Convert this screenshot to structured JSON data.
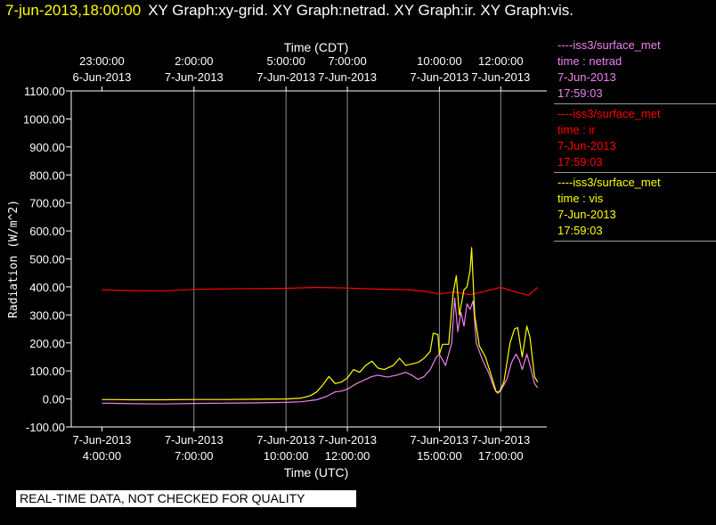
{
  "header": {
    "timestamp": "7-jun-2013,18:00:00",
    "titles": "XY Graph:xy-grid.  XY Graph:netrad.  XY Graph:ir.  XY Graph:vis."
  },
  "legend": [
    {
      "source": "----iss3/surface_met",
      "var": "time : netrad",
      "date": "7-Jun-2013",
      "time": "17:59:03",
      "color": "#ee82ee"
    },
    {
      "source": "----iss3/surface_met",
      "var": "time : ir",
      "date": "7-Jun-2013",
      "time": "17:59:03",
      "color": "#ff0000"
    },
    {
      "source": "----iss3/surface_met",
      "var": "time : vis",
      "date": "7-Jun-2013",
      "time": "17:59:03",
      "color": "#ffff00"
    }
  ],
  "qc_banner": "REAL-TIME DATA, NOT CHECKED FOR QUALITY",
  "chart_data": {
    "type": "line",
    "xlabel": "Time (UTC)",
    "x2label": "Time (CDT)",
    "ylabel": "Radiation (W/m^2)",
    "xlim": [
      3.0,
      18.5
    ],
    "ylim": [
      -100,
      1100
    ],
    "yticks": [
      -100,
      0,
      100,
      200,
      300,
      400,
      500,
      600,
      700,
      800,
      900,
      1000,
      1100
    ],
    "ytick_labels": [
      "-100.00",
      "0.00",
      "100.00",
      "200.00",
      "300.00",
      "400.00",
      "500.00",
      "600.00",
      "700.00",
      "800.00",
      "900.00",
      "1000.00",
      "1100.00"
    ],
    "xticks_utc": [
      {
        "x": 4.0,
        "date": "7-Jun-2013",
        "time": "4:00:00"
      },
      {
        "x": 7.0,
        "date": "7-Jun-2013",
        "time": "7:00:00"
      },
      {
        "x": 10.0,
        "date": "7-Jun-2013",
        "time": "10:00:00"
      },
      {
        "x": 12.0,
        "date": "7-Jun-2013",
        "time": "12:00:00"
      },
      {
        "x": 15.0,
        "date": "7-Jun-2013",
        "time": "15:00:00"
      },
      {
        "x": 17.0,
        "date": "7-Jun-2013",
        "time": "17:00:00"
      }
    ],
    "xticks_cdt": [
      {
        "x": 4.0,
        "time": "23:00:00",
        "date": "6-Jun-2013"
      },
      {
        "x": 7.0,
        "time": "2:00:00",
        "date": "7-Jun-2013"
      },
      {
        "x": 10.0,
        "time": "5:00:00",
        "date": "7-Jun-2013"
      },
      {
        "x": 12.0,
        "time": "7:00:00",
        "date": "7-Jun-2013"
      },
      {
        "x": 15.0,
        "time": "10:00:00",
        "date": "7-Jun-2013"
      },
      {
        "x": 17.0,
        "time": "12:00:00",
        "date": "7-Jun-2013"
      }
    ],
    "vgrid": [
      7.0,
      10.0,
      12.0,
      15.0,
      17.0
    ],
    "grid": true,
    "series": [
      {
        "name": "netrad",
        "color": "#ee82ee",
        "points": [
          [
            4.0,
            -15
          ],
          [
            5.0,
            -17
          ],
          [
            6.0,
            -18
          ],
          [
            7.0,
            -16
          ],
          [
            8.0,
            -15
          ],
          [
            9.0,
            -14
          ],
          [
            10.0,
            -12
          ],
          [
            10.5,
            -10
          ],
          [
            11.0,
            -3
          ],
          [
            11.3,
            8
          ],
          [
            11.6,
            25
          ],
          [
            11.8,
            28
          ],
          [
            12.0,
            35
          ],
          [
            12.3,
            55
          ],
          [
            12.5,
            65
          ],
          [
            12.8,
            80
          ],
          [
            13.0,
            85
          ],
          [
            13.3,
            78
          ],
          [
            13.6,
            85
          ],
          [
            13.9,
            95
          ],
          [
            14.1,
            85
          ],
          [
            14.3,
            70
          ],
          [
            14.5,
            80
          ],
          [
            14.7,
            105
          ],
          [
            14.9,
            150
          ],
          [
            15.0,
            160
          ],
          [
            15.2,
            120
          ],
          [
            15.4,
            200
          ],
          [
            15.5,
            360
          ],
          [
            15.6,
            240
          ],
          [
            15.7,
            310
          ],
          [
            15.8,
            260
          ],
          [
            15.9,
            340
          ],
          [
            16.0,
            320
          ],
          [
            16.1,
            350
          ],
          [
            16.2,
            200
          ],
          [
            16.4,
            140
          ],
          [
            16.6,
            95
          ],
          [
            16.8,
            35
          ],
          [
            16.9,
            20
          ],
          [
            17.0,
            30
          ],
          [
            17.2,
            70
          ],
          [
            17.35,
            130
          ],
          [
            17.5,
            160
          ],
          [
            17.6,
            140
          ],
          [
            17.7,
            105
          ],
          [
            17.85,
            160
          ],
          [
            17.95,
            120
          ],
          [
            18.1,
            55
          ],
          [
            18.2,
            40
          ]
        ]
      },
      {
        "name": "ir",
        "color": "#ff0000",
        "points": [
          [
            4.0,
            390
          ],
          [
            5.0,
            387
          ],
          [
            6.0,
            386
          ],
          [
            7.0,
            391
          ],
          [
            8.0,
            393
          ],
          [
            9.0,
            394
          ],
          [
            10.0,
            395
          ],
          [
            11.0,
            398
          ],
          [
            12.0,
            396
          ],
          [
            13.0,
            392
          ],
          [
            14.0,
            390
          ],
          [
            14.5,
            385
          ],
          [
            15.0,
            375
          ],
          [
            15.5,
            382
          ],
          [
            16.0,
            372
          ],
          [
            16.5,
            385
          ],
          [
            17.0,
            398
          ],
          [
            17.5,
            382
          ],
          [
            17.9,
            370
          ],
          [
            18.2,
            398
          ]
        ]
      },
      {
        "name": "vis",
        "color": "#ffff00",
        "points": [
          [
            4.0,
            -2
          ],
          [
            5.0,
            -3
          ],
          [
            6.0,
            -3
          ],
          [
            7.0,
            -2
          ],
          [
            8.0,
            -2
          ],
          [
            9.0,
            -1
          ],
          [
            10.0,
            0
          ],
          [
            10.5,
            3
          ],
          [
            10.8,
            12
          ],
          [
            11.0,
            25
          ],
          [
            11.2,
            50
          ],
          [
            11.4,
            80
          ],
          [
            11.6,
            55
          ],
          [
            11.8,
            60
          ],
          [
            12.0,
            75
          ],
          [
            12.2,
            105
          ],
          [
            12.4,
            95
          ],
          [
            12.6,
            120
          ],
          [
            12.8,
            135
          ],
          [
            13.0,
            110
          ],
          [
            13.2,
            105
          ],
          [
            13.5,
            120
          ],
          [
            13.7,
            145
          ],
          [
            13.9,
            120
          ],
          [
            14.1,
            125
          ],
          [
            14.3,
            130
          ],
          [
            14.5,
            145
          ],
          [
            14.7,
            170
          ],
          [
            14.8,
            235
          ],
          [
            14.95,
            230
          ],
          [
            15.0,
            160
          ],
          [
            15.1,
            195
          ],
          [
            15.3,
            195
          ],
          [
            15.45,
            380
          ],
          [
            15.55,
            440
          ],
          [
            15.65,
            300
          ],
          [
            15.8,
            390
          ],
          [
            15.9,
            400
          ],
          [
            16.0,
            460
          ],
          [
            16.05,
            540
          ],
          [
            16.15,
            300
          ],
          [
            16.3,
            190
          ],
          [
            16.5,
            150
          ],
          [
            16.7,
            80
          ],
          [
            16.85,
            25
          ],
          [
            16.95,
            25
          ],
          [
            17.1,
            60
          ],
          [
            17.3,
            200
          ],
          [
            17.45,
            250
          ],
          [
            17.55,
            255
          ],
          [
            17.7,
            150
          ],
          [
            17.85,
            260
          ],
          [
            17.95,
            220
          ],
          [
            18.1,
            80
          ],
          [
            18.2,
            60
          ]
        ]
      }
    ]
  }
}
